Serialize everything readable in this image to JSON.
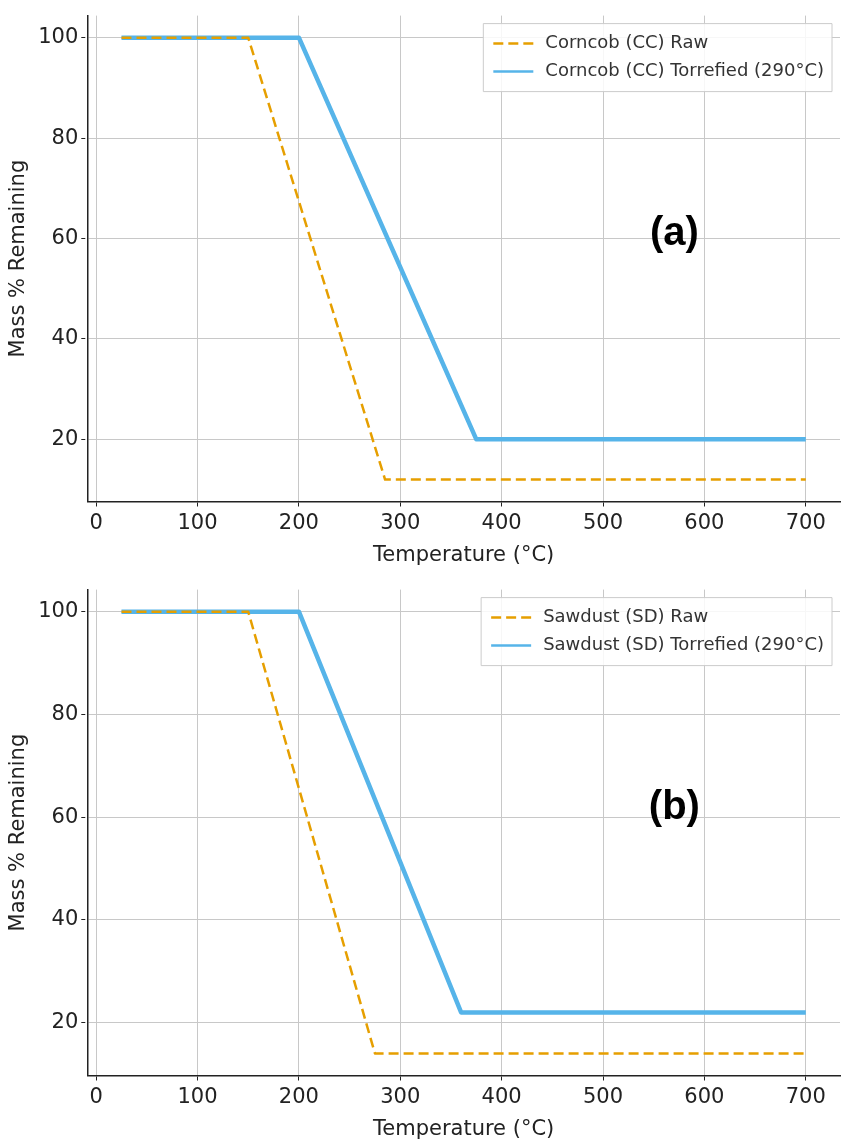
{
  "chart_data": [
    {
      "type": "line",
      "xlabel": "Temperature (°C)",
      "ylabel": "Mass % Remaining",
      "xlim": [
        -8.75,
        733.75
      ],
      "ylim": [
        7.6,
        104.4
      ],
      "xticks": [
        0,
        100,
        200,
        300,
        400,
        500,
        600,
        700
      ],
      "yticks": [
        20,
        40,
        60,
        80,
        100
      ],
      "grid": true,
      "legend": "top right",
      "annotations": [
        "(a)"
      ],
      "series": [
        {
          "name": "Corncob (CC) Raw",
          "color": "#e69f00",
          "line_style": "dashed",
          "x": [
            25,
            150,
            285,
            700
          ],
          "values": [
            100,
            100,
            12,
            12
          ]
        },
        {
          "name": "Corncob (CC) Torrefied (290°C)",
          "color": "#56b4e9",
          "line_style": "solid",
          "x": [
            25,
            200,
            375,
            700
          ],
          "values": [
            100,
            100,
            20,
            20
          ]
        }
      ]
    },
    {
      "type": "line",
      "xlabel": "Temperature (°C)",
      "ylabel": "Mass % Remaining",
      "xlim": [
        -8.75,
        733.75
      ],
      "ylim": [
        9.7,
        104.3
      ],
      "xticks": [
        0,
        100,
        200,
        300,
        400,
        500,
        600,
        700
      ],
      "yticks": [
        20,
        40,
        60,
        80,
        100
      ],
      "grid": true,
      "legend": "top right",
      "annotations": [
        "(b)"
      ],
      "series": [
        {
          "name": "Sawdust (SD) Raw",
          "color": "#e69f00",
          "line_style": "dashed",
          "x": [
            25,
            150,
            275,
            700
          ],
          "values": [
            100,
            100,
            14,
            14
          ]
        },
        {
          "name": "Sawdust (SD) Torrefied (290°C)",
          "color": "#56b4e9",
          "line_style": "solid",
          "x": [
            25,
            200,
            360,
            700
          ],
          "values": [
            100,
            100,
            22,
            22
          ]
        }
      ]
    }
  ]
}
